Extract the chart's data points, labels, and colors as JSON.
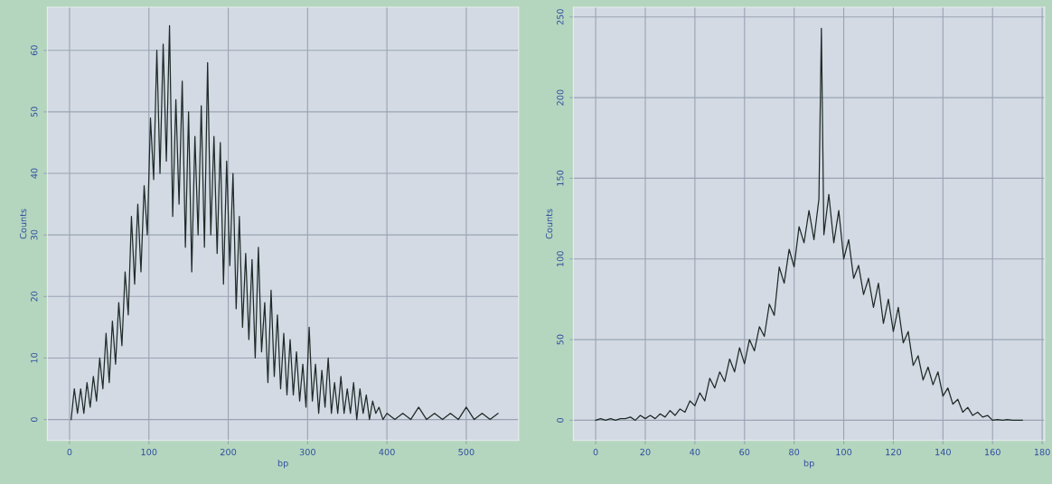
{
  "chart_data": [
    {
      "type": "line",
      "xlabel": "bp",
      "ylabel": "Counts",
      "grid": true,
      "xlim": [
        -28,
        566
      ],
      "ylim": [
        -3.4,
        67
      ],
      "xticks": [
        0,
        100,
        200,
        300,
        400,
        500
      ],
      "yticks": [
        0,
        10,
        20,
        30,
        40,
        50,
        60
      ],
      "series": [
        {
          "color": "#1e2b28",
          "x": [
            2,
            6,
            10,
            14,
            18,
            22,
            26,
            30,
            34,
            38,
            42,
            46,
            50,
            54,
            58,
            62,
            66,
            70,
            74,
            78,
            82,
            86,
            90,
            94,
            98,
            102,
            106,
            110,
            114,
            118,
            122,
            126,
            130,
            134,
            138,
            142,
            146,
            150,
            154,
            158,
            162,
            166,
            170,
            174,
            178,
            182,
            186,
            190,
            194,
            198,
            202,
            206,
            210,
            214,
            218,
            222,
            226,
            230,
            234,
            238,
            242,
            246,
            250,
            254,
            258,
            262,
            266,
            270,
            274,
            278,
            282,
            286,
            290,
            294,
            298,
            302,
            306,
            310,
            314,
            318,
            322,
            326,
            330,
            334,
            338,
            342,
            346,
            350,
            354,
            358,
            362,
            366,
            370,
            374,
            378,
            382,
            386,
            390,
            395,
            400,
            410,
            420,
            430,
            440,
            450,
            460,
            470,
            480,
            490,
            500,
            510,
            520,
            530,
            540
          ],
          "values": [
            0,
            5,
            1,
            5,
            1,
            6,
            2,
            7,
            3,
            10,
            5,
            14,
            6,
            16,
            9,
            19,
            12,
            24,
            17,
            33,
            22,
            35,
            24,
            38,
            30,
            49,
            39,
            60,
            40,
            61,
            42,
            64,
            33,
            52,
            35,
            55,
            28,
            50,
            24,
            46,
            30,
            51,
            28,
            58,
            30,
            46,
            27,
            45,
            22,
            42,
            25,
            40,
            18,
            33,
            15,
            27,
            13,
            26,
            10,
            28,
            11,
            19,
            6,
            21,
            7,
            17,
            5,
            14,
            4,
            13,
            4,
            11,
            3,
            9,
            2,
            15,
            3,
            9,
            1,
            8,
            2,
            10,
            1,
            6,
            1,
            7,
            1,
            5,
            1,
            6,
            0,
            5,
            1,
            4,
            0,
            3,
            1,
            2,
            0,
            1,
            0,
            1,
            0,
            2,
            0,
            1,
            0,
            1,
            0,
            2,
            0,
            1,
            0,
            1
          ]
        }
      ]
    },
    {
      "type": "line",
      "xlabel": "bp",
      "ylabel": "Counts",
      "grid": true,
      "xlim": [
        -9,
        181
      ],
      "ylim": [
        -12.5,
        256
      ],
      "xticks": [
        0,
        20,
        40,
        60,
        80,
        100,
        120,
        140,
        160,
        180
      ],
      "yticks": [
        0,
        50,
        100,
        150,
        200,
        250
      ],
      "series": [
        {
          "color": "#1e2b28",
          "x": [
            0,
            2,
            4,
            6,
            8,
            10,
            12,
            14,
            16,
            18,
            20,
            22,
            24,
            26,
            28,
            30,
            32,
            34,
            36,
            38,
            40,
            42,
            44,
            46,
            48,
            50,
            52,
            54,
            56,
            58,
            60,
            62,
            64,
            66,
            68,
            70,
            72,
            74,
            76,
            78,
            80,
            82,
            84,
            86,
            88,
            90,
            91,
            92,
            94,
            96,
            98,
            100,
            102,
            104,
            106,
            108,
            110,
            112,
            114,
            116,
            118,
            120,
            122,
            124,
            126,
            128,
            130,
            132,
            134,
            136,
            138,
            140,
            142,
            144,
            146,
            148,
            150,
            152,
            154,
            156,
            158,
            160,
            162,
            164,
            166,
            168,
            170,
            172
          ],
          "values": [
            0,
            1,
            0,
            1,
            0,
            1,
            1,
            2,
            0,
            3,
            1,
            3,
            1,
            4,
            2,
            6,
            3,
            7,
            5,
            12,
            9,
            17,
            12,
            26,
            20,
            30,
            24,
            38,
            30,
            45,
            35,
            50,
            43,
            58,
            52,
            72,
            65,
            95,
            85,
            106,
            95,
            120,
            110,
            130,
            112,
            137,
            243,
            115,
            140,
            110,
            130,
            100,
            112,
            88,
            96,
            78,
            88,
            70,
            85,
            60,
            75,
            55,
            70,
            48,
            55,
            34,
            40,
            25,
            33,
            22,
            30,
            15,
            20,
            10,
            13,
            5,
            8,
            3,
            5,
            2,
            3,
            0,
            0.5,
            0,
            0.5,
            0,
            0,
            0
          ]
        }
      ]
    }
  ]
}
